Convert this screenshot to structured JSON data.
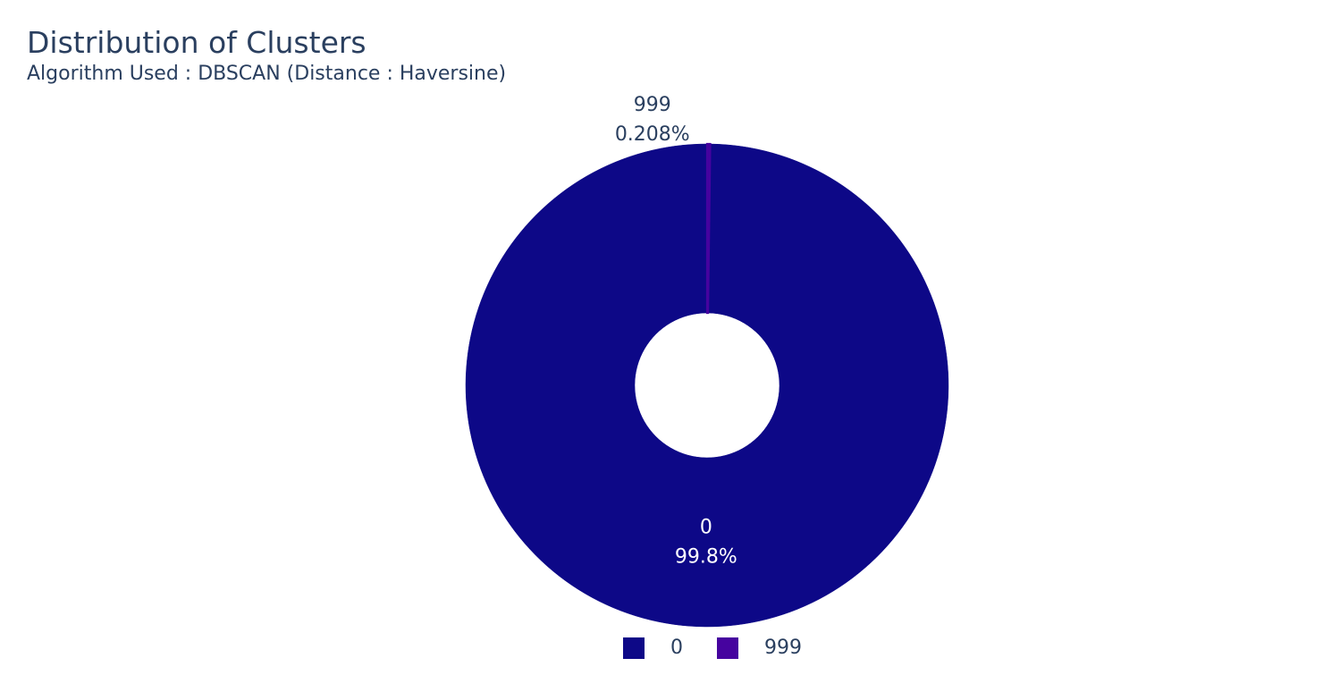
{
  "chart_data": {
    "type": "pie",
    "title": "Distribution of Clusters",
    "subtitle": "Algorithm Used : DBSCAN (Distance : Haversine)",
    "hole": true,
    "slices": [
      {
        "label": "0",
        "percent_label": "99.8%",
        "value": 99.792,
        "color": "#0d0887"
      },
      {
        "label": "999",
        "percent_label": "0.208%",
        "value": 0.208,
        "color": "#46039f"
      }
    ],
    "legend": {
      "placement": "bottom-center",
      "entries": [
        "0",
        "999"
      ]
    }
  }
}
